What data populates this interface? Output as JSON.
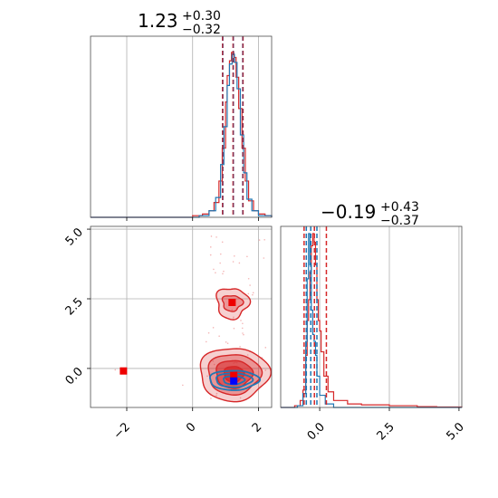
{
  "chart_data": [
    {
      "panel": "marginal-x",
      "type": "histogram",
      "title": {
        "median": "1.23",
        "plus": "+0.30",
        "minus": "−0.32"
      },
      "xlim": [
        -3.1,
        2.4
      ],
      "ylim": [
        0,
        1
      ],
      "grid": true,
      "quantile_lines_red": [
        0.91,
        1.23,
        1.53
      ],
      "quantile_lines_blue": [
        0.92,
        1.24,
        1.52
      ],
      "red_series": [
        [
          -3.1,
          0.0
        ],
        [
          -0.3,
          0.0
        ],
        [
          0.0,
          0.01
        ],
        [
          0.3,
          0.02
        ],
        [
          0.5,
          0.04
        ],
        [
          0.65,
          0.09
        ],
        [
          0.8,
          0.22
        ],
        [
          0.9,
          0.42
        ],
        [
          1.0,
          0.7
        ],
        [
          1.05,
          0.86
        ],
        [
          1.12,
          0.95
        ],
        [
          1.18,
          1.0
        ],
        [
          1.25,
          0.97
        ],
        [
          1.32,
          0.85
        ],
        [
          1.4,
          0.66
        ],
        [
          1.5,
          0.42
        ],
        [
          1.6,
          0.22
        ],
        [
          1.7,
          0.1
        ],
        [
          1.85,
          0.04
        ],
        [
          2.0,
          0.02
        ],
        [
          2.2,
          0.01
        ],
        [
          2.4,
          0.0
        ]
      ],
      "blue_series": [
        [
          -3.1,
          0.0
        ],
        [
          -0.2,
          0.0
        ],
        [
          0.2,
          0.01
        ],
        [
          0.5,
          0.04
        ],
        [
          0.7,
          0.12
        ],
        [
          0.85,
          0.32
        ],
        [
          0.95,
          0.55
        ],
        [
          1.05,
          0.8
        ],
        [
          1.12,
          0.93
        ],
        [
          1.2,
          0.99
        ],
        [
          1.27,
          0.94
        ],
        [
          1.35,
          0.78
        ],
        [
          1.45,
          0.5
        ],
        [
          1.55,
          0.27
        ],
        [
          1.65,
          0.11
        ],
        [
          1.8,
          0.04
        ],
        [
          2.0,
          0.01
        ],
        [
          2.4,
          0.0
        ]
      ],
      "xtick_labels": [],
      "ytick_labels": []
    },
    {
      "panel": "joint",
      "type": "contour",
      "xlim": [
        -3.1,
        2.4
      ],
      "ylim": [
        -1.4,
        5.1
      ],
      "grid": true,
      "xticks": [
        -2,
        0,
        2
      ],
      "xtick_labels": [
        "−2",
        "0",
        "2"
      ],
      "yticks": [
        0.0,
        2.5,
        5.0
      ],
      "ytick_labels": [
        "0.0",
        "2.5",
        "5.0"
      ],
      "red_markers": [
        [
          1.2,
          2.37
        ],
        [
          -2.1,
          -0.09
        ],
        [
          1.25,
          -0.25
        ]
      ],
      "blue_markers": [
        [
          1.25,
          -0.45
        ]
      ],
      "red_contours": {
        "main_mode": {
          "center": [
            1.25,
            -0.2
          ],
          "radii": [
            [
              1.05,
              0.95
            ],
            [
              0.8,
              0.72
            ],
            [
              0.55,
              0.5
            ],
            [
              0.3,
              0.28
            ]
          ]
        },
        "upper_mode": {
          "center": [
            1.2,
            2.35
          ],
          "radii": [
            [
              0.48,
              0.55
            ],
            [
              0.3,
              0.28
            ]
          ]
        }
      },
      "blue_contours": {
        "center": [
          1.25,
          -0.42
        ],
        "radii": [
          [
            0.75,
            0.35
          ],
          [
            0.55,
            0.25
          ],
          [
            0.32,
            0.15
          ]
        ]
      }
    },
    {
      "panel": "marginal-y",
      "type": "histogram",
      "title": {
        "median": "−0.19",
        "plus": "+0.43",
        "minus": "−0.37"
      },
      "xlim": [
        -1.4,
        5.1
      ],
      "ylim": [
        0,
        1
      ],
      "grid": true,
      "xticks": [
        0.0,
        2.5,
        5.0
      ],
      "xtick_labels": [
        "0.0",
        "2.5",
        "5.0"
      ],
      "quantile_lines_red": [
        -0.56,
        -0.19,
        0.24
      ],
      "quantile_lines_blue": [
        -0.48,
        -0.32,
        -0.1
      ],
      "red_series": [
        [
          -1.4,
          0.0
        ],
        [
          -0.9,
          0.01
        ],
        [
          -0.7,
          0.04
        ],
        [
          -0.6,
          0.1
        ],
        [
          -0.5,
          0.3
        ],
        [
          -0.45,
          0.5
        ],
        [
          -0.4,
          0.62
        ],
        [
          -0.35,
          0.78
        ],
        [
          -0.3,
          0.93
        ],
        [
          -0.25,
          1.0
        ],
        [
          -0.2,
          0.95
        ],
        [
          -0.15,
          0.82
        ],
        [
          -0.1,
          0.62
        ],
        [
          -0.05,
          0.5
        ],
        [
          0.0,
          0.44
        ],
        [
          0.05,
          0.32
        ],
        [
          0.15,
          0.18
        ],
        [
          0.3,
          0.09
        ],
        [
          0.5,
          0.04
        ],
        [
          1.0,
          0.02
        ],
        [
          1.5,
          0.015
        ],
        [
          2.5,
          0.01
        ],
        [
          3.5,
          0.005
        ],
        [
          4.2,
          0.003
        ],
        [
          5.1,
          0.0
        ]
      ],
      "blue_series": [
        [
          -1.4,
          0.0
        ],
        [
          -0.8,
          0.01
        ],
        [
          -0.6,
          0.08
        ],
        [
          -0.5,
          0.38
        ],
        [
          -0.45,
          0.74
        ],
        [
          -0.4,
          1.0
        ],
        [
          -0.35,
          0.82
        ],
        [
          -0.3,
          0.56
        ],
        [
          -0.25,
          0.42
        ],
        [
          -0.2,
          0.38
        ],
        [
          -0.15,
          0.3
        ],
        [
          -0.1,
          0.18
        ],
        [
          0.0,
          0.07
        ],
        [
          0.2,
          0.02
        ],
        [
          0.5,
          0.0
        ],
        [
          5.1,
          0.0
        ]
      ],
      "ytick_labels": []
    }
  ],
  "colors": {
    "red": "#d62728",
    "blue": "#1f77b4",
    "grid": "#b0b0b0",
    "purple_overlap": "#6a3d6a"
  }
}
